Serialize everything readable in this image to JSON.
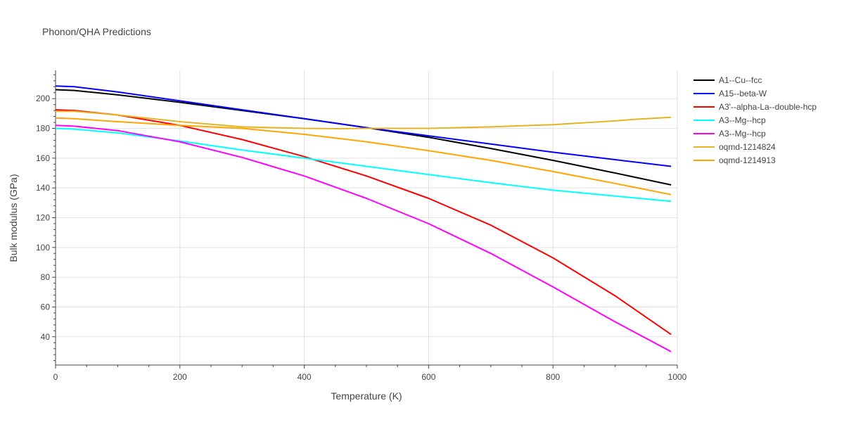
{
  "chart_data": {
    "type": "line",
    "title": "Phonon/QHA Predictions",
    "xlabel": "Temperature (K)",
    "ylabel": "Bulk modulus (GPa)",
    "xlim": [
      0,
      1000
    ],
    "ylim": [
      21,
      219
    ],
    "xticks": [
      0,
      200,
      400,
      600,
      800,
      1000
    ],
    "yticks": [
      40,
      60,
      80,
      100,
      120,
      140,
      160,
      180,
      200
    ],
    "grid": true,
    "legend_position": "right",
    "series": [
      {
        "name": "A1--Cu--fcc",
        "color": "#000000",
        "x": [
          0,
          30,
          100,
          200,
          300,
          400,
          500,
          600,
          700,
          800,
          900,
          990
        ],
        "y": [
          206,
          205.5,
          202.5,
          197.5,
          192,
          186.5,
          180.5,
          174,
          166.5,
          158.5,
          150,
          142
        ]
      },
      {
        "name": "A15--beta-W",
        "color": "#0000ff",
        "x": [
          0,
          30,
          100,
          200,
          300,
          400,
          500,
          600,
          700,
          800,
          900,
          990
        ],
        "y": [
          208.5,
          208,
          204.5,
          198.5,
          192.5,
          186.5,
          180.5,
          175,
          169.5,
          164,
          159,
          154.5
        ]
      },
      {
        "name": "A3'--alpha-La--double-hcp",
        "color": "#ff0000",
        "x": [
          0,
          30,
          100,
          200,
          300,
          400,
          500,
          600,
          700,
          800,
          900,
          990
        ],
        "y": [
          192.5,
          192,
          189,
          182,
          172.5,
          161,
          148,
          133,
          115,
          93,
          67.5,
          41.5
        ]
      },
      {
        "name": "A3--Mg--hcp",
        "color": "#00ffff",
        "x": [
          0,
          30,
          100,
          200,
          300,
          400,
          500,
          600,
          700,
          800,
          900,
          990
        ],
        "y": [
          180,
          179.5,
          177,
          171.5,
          165.5,
          160,
          154.5,
          149,
          143.5,
          138.5,
          134.5,
          131
        ]
      },
      {
        "name": "A3--Mg--hcp",
        "color": "#ff00ff",
        "x": [
          0,
          30,
          100,
          200,
          300,
          400,
          500,
          600,
          700,
          800,
          900,
          990
        ],
        "y": [
          182,
          181.5,
          178.5,
          171,
          160.5,
          148,
          133,
          116,
          96,
          73.5,
          50,
          30
        ]
      },
      {
        "name": "oqmd-1214824",
        "color": "#e6b422",
        "x": [
          0,
          30,
          100,
          200,
          300,
          400,
          460,
          500,
          600,
          700,
          800,
          900,
          930,
          990
        ],
        "y": [
          191.5,
          191.5,
          189,
          184.5,
          181,
          180,
          179.8,
          180,
          180,
          181,
          182.5,
          185,
          186,
          187.5
        ]
      },
      {
        "name": "oqmd-1214913",
        "color": "#ffa500",
        "x": [
          0,
          30,
          100,
          200,
          300,
          400,
          500,
          600,
          700,
          800,
          900,
          990
        ],
        "y": [
          187,
          186.5,
          184.5,
          182,
          180,
          176,
          171,
          165,
          158.5,
          151,
          143,
          135.5
        ]
      }
    ]
  }
}
